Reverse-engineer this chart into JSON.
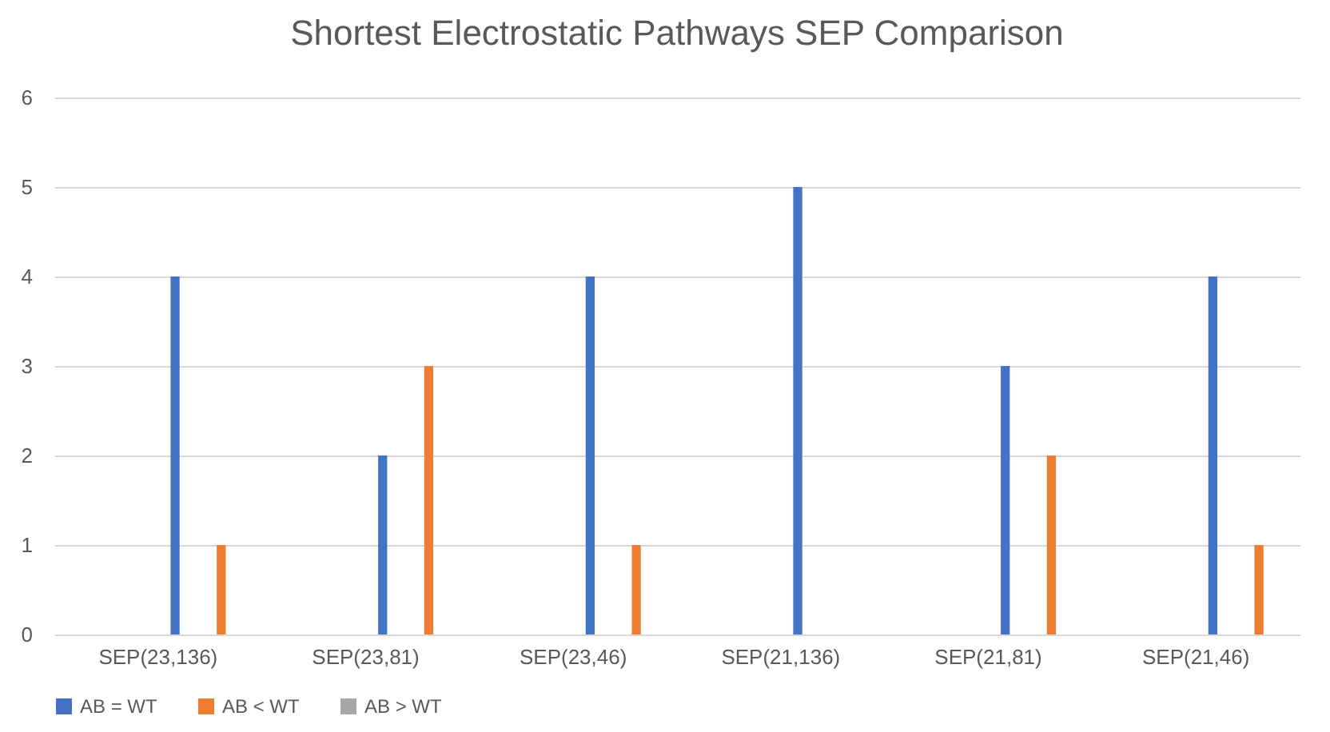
{
  "chart_data": {
    "type": "bar",
    "title": "Shortest Electrostatic Pathways SEP Comparison",
    "categories": [
      "SEP(23,136)",
      "SEP(23,81)",
      "SEP(23,46)",
      "SEP(21,136)",
      "SEP(21,81)",
      "SEP(21,46)"
    ],
    "series": [
      {
        "name": "AB = WT",
        "color": "#4472c4",
        "values": [
          4,
          2,
          4,
          5,
          3,
          4
        ]
      },
      {
        "name": "AB < WT",
        "color": "#ed7d31",
        "values": [
          1,
          3,
          1,
          0,
          2,
          1
        ]
      },
      {
        "name": "AB > WT",
        "color": "#a5a5a5",
        "values": [
          0,
          0,
          0,
          0,
          0,
          0
        ]
      }
    ],
    "ylim": [
      0,
      6
    ],
    "yticks": [
      0,
      1,
      2,
      3,
      4,
      5,
      6
    ],
    "grid": "y",
    "legend": "bottom"
  }
}
